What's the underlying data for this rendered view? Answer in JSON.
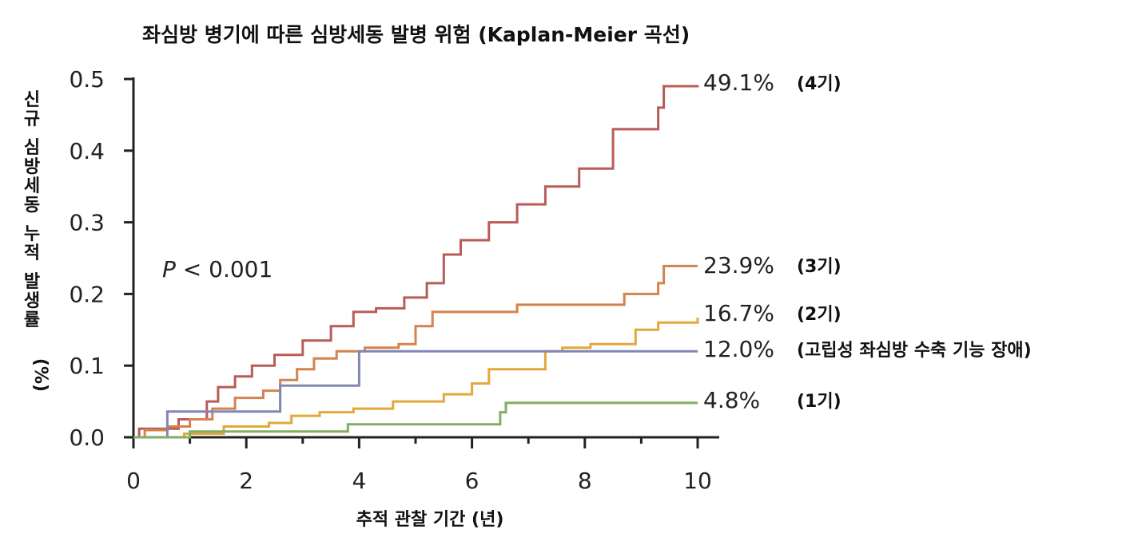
{
  "chart_data": {
    "type": "line",
    "step": true,
    "title": "좌심방 병기에 따른 심방세동 발병 위험 (Kaplan-Meier 곡선)",
    "xlabel": "추적 관찰 기간 (년)",
    "ylabel": "신규 심방세동 누적 발생률 (%)",
    "xlim": [
      0,
      10
    ],
    "ylim": [
      0,
      0.5
    ],
    "xticks": [
      0,
      2,
      4,
      6,
      8,
      10
    ],
    "yticks": [
      0.0,
      0.1,
      0.2,
      0.3,
      0.4,
      0.5
    ],
    "xtick_labels": [
      "0",
      "2",
      "4",
      "6",
      "8",
      "10"
    ],
    "ytick_labels": [
      "0.0",
      "0.1",
      "0.2",
      "0.3",
      "0.4",
      "0.5"
    ],
    "annotation": {
      "p_symbol": "P",
      "p_rest": " < 0.001"
    },
    "series": [
      {
        "id": "stage4",
        "color": "#b85c58",
        "end_value": "49.1%",
        "end_tag": "(4기)",
        "x": [
          0,
          0.1,
          0.8,
          1.3,
          1.5,
          1.8,
          2.1,
          2.5,
          3.0,
          3.5,
          3.9,
          4.3,
          4.8,
          5.2,
          5.5,
          5.8,
          6.3,
          6.8,
          7.3,
          7.9,
          8.5,
          9.3,
          9.4,
          10
        ],
        "y": [
          0,
          0.012,
          0.025,
          0.05,
          0.07,
          0.085,
          0.1,
          0.115,
          0.135,
          0.155,
          0.175,
          0.18,
          0.195,
          0.215,
          0.255,
          0.275,
          0.3,
          0.325,
          0.35,
          0.375,
          0.43,
          0.46,
          0.49,
          0.491
        ]
      },
      {
        "id": "stage3",
        "color": "#d5824e",
        "end_value": "23.9%",
        "end_tag": "(3기)",
        "x": [
          0,
          0.2,
          0.6,
          1.0,
          1.4,
          1.8,
          2.3,
          2.6,
          2.9,
          3.2,
          3.6,
          4.1,
          4.7,
          5.0,
          5.3,
          6.8,
          8.7,
          9.3,
          9.4,
          10
        ],
        "y": [
          0,
          0.01,
          0.015,
          0.025,
          0.04,
          0.055,
          0.065,
          0.08,
          0.095,
          0.11,
          0.12,
          0.125,
          0.13,
          0.155,
          0.175,
          0.185,
          0.2,
          0.215,
          0.239,
          0.239
        ]
      },
      {
        "id": "stage2",
        "color": "#e3a83a",
        "end_value": "16.7%",
        "end_tag": "(2기)",
        "x": [
          0,
          0.9,
          1.6,
          2.4,
          2.8,
          3.3,
          3.9,
          4.6,
          5.5,
          6.0,
          6.3,
          7.3,
          7.6,
          8.1,
          8.9,
          9.3,
          10
        ],
        "y": [
          0,
          0.005,
          0.015,
          0.02,
          0.03,
          0.035,
          0.04,
          0.05,
          0.06,
          0.075,
          0.095,
          0.12,
          0.125,
          0.13,
          0.15,
          0.16,
          0.167
        ]
      },
      {
        "id": "impaired",
        "color": "#8187b5",
        "end_value": "12.0%",
        "end_tag": "(고립성 좌심방 수축 기능 장애)",
        "x": [
          0,
          0.6,
          2.6,
          4.0,
          10
        ],
        "y": [
          0,
          0.036,
          0.072,
          0.12,
          0.12
        ]
      },
      {
        "id": "stage1",
        "color": "#82ad62",
        "end_value": "4.8%",
        "end_tag": "(1기)",
        "x": [
          0,
          1.0,
          3.8,
          6.5,
          6.6,
          10
        ],
        "y": [
          0,
          0.008,
          0.018,
          0.035,
          0.048,
          0.048
        ]
      }
    ]
  }
}
